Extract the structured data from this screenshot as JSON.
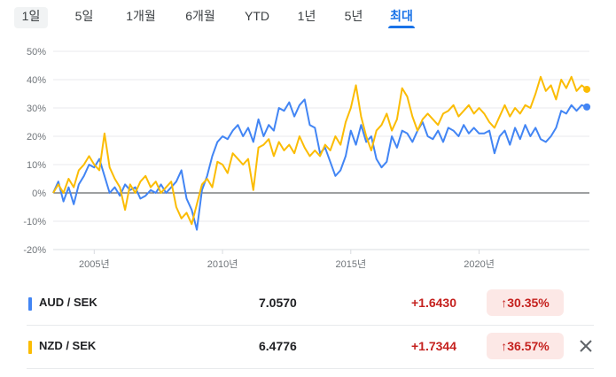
{
  "tabs": [
    {
      "label": "1일",
      "state": "selected"
    },
    {
      "label": "5일",
      "state": "normal"
    },
    {
      "label": "1개월",
      "state": "normal"
    },
    {
      "label": "6개월",
      "state": "normal"
    },
    {
      "label": "YTD",
      "state": "normal"
    },
    {
      "label": "1년",
      "state": "normal"
    },
    {
      "label": "5년",
      "state": "normal"
    },
    {
      "label": "최대",
      "state": "active"
    }
  ],
  "chart_data": {
    "type": "line",
    "ylim": [
      -20,
      50
    ],
    "yticks": [
      "50%",
      "40%",
      "30%",
      "20%",
      "10%",
      "0%",
      "-10%",
      "-20%"
    ],
    "xlim": [
      2003.4,
      2024.3
    ],
    "xticks": [
      {
        "label": "2005년",
        "year": 2005
      },
      {
        "label": "2010년",
        "year": 2010
      },
      {
        "label": "2015년",
        "year": 2015
      },
      {
        "label": "2020년",
        "year": 2020
      }
    ],
    "grid": true,
    "series": [
      {
        "name": "AUD / SEK",
        "color": "#4285f4",
        "x": [
          2003.4,
          2003.6,
          2003.8,
          2004.0,
          2004.2,
          2004.4,
          2004.6,
          2004.8,
          2005.0,
          2005.2,
          2005.4,
          2005.6,
          2005.8,
          2006.0,
          2006.2,
          2006.4,
          2006.6,
          2006.8,
          2007.0,
          2007.2,
          2007.4,
          2007.6,
          2007.8,
          2008.0,
          2008.2,
          2008.4,
          2008.6,
          2008.8,
          2009.0,
          2009.2,
          2009.4,
          2009.6,
          2009.8,
          2010.0,
          2010.2,
          2010.4,
          2010.6,
          2010.8,
          2011.0,
          2011.2,
          2011.4,
          2011.6,
          2011.8,
          2012.0,
          2012.2,
          2012.4,
          2012.6,
          2012.8,
          2013.0,
          2013.2,
          2013.4,
          2013.6,
          2013.8,
          2014.0,
          2014.2,
          2014.4,
          2014.6,
          2014.8,
          2015.0,
          2015.2,
          2015.4,
          2015.6,
          2015.8,
          2016.0,
          2016.2,
          2016.4,
          2016.6,
          2016.8,
          2017.0,
          2017.2,
          2017.4,
          2017.6,
          2017.8,
          2018.0,
          2018.2,
          2018.4,
          2018.6,
          2018.8,
          2019.0,
          2019.2,
          2019.4,
          2019.6,
          2019.8,
          2020.0,
          2020.2,
          2020.4,
          2020.6,
          2020.8,
          2021.0,
          2021.2,
          2021.4,
          2021.6,
          2021.8,
          2022.0,
          2022.2,
          2022.4,
          2022.6,
          2022.8,
          2023.0,
          2023.2,
          2023.4,
          2023.6,
          2023.8,
          2024.0,
          2024.2
        ],
        "y": [
          0,
          4,
          -3,
          2,
          -4,
          3,
          6,
          10,
          9,
          12,
          6,
          0,
          2,
          -1,
          3,
          1,
          2,
          -2,
          -1,
          1,
          0,
          3,
          0,
          2,
          4,
          8,
          -2,
          -6,
          -13,
          1,
          6,
          13,
          18,
          20,
          19,
          22,
          24,
          20,
          23,
          18,
          26,
          20,
          24,
          22,
          30,
          29,
          32,
          27,
          31,
          33,
          24,
          23,
          14,
          16,
          11,
          6,
          8,
          13,
          22,
          17,
          24,
          18,
          20,
          12,
          9,
          11,
          20,
          16,
          22,
          21,
          18,
          22,
          25,
          20,
          19,
          22,
          18,
          23,
          22,
          20,
          24,
          21,
          23,
          21,
          21,
          22,
          14,
          20,
          22,
          17,
          23,
          19,
          24,
          20,
          23,
          19,
          18,
          20,
          23,
          29,
          28,
          31,
          29,
          31,
          30.35
        ]
      },
      {
        "name": "NZD / SEK",
        "color": "#fbbc04",
        "x": [
          2003.4,
          2003.6,
          2003.8,
          2004.0,
          2004.2,
          2004.4,
          2004.6,
          2004.8,
          2005.0,
          2005.2,
          2005.4,
          2005.6,
          2005.8,
          2006.0,
          2006.2,
          2006.4,
          2006.6,
          2006.8,
          2007.0,
          2007.2,
          2007.4,
          2007.6,
          2007.8,
          2008.0,
          2008.2,
          2008.4,
          2008.6,
          2008.8,
          2009.0,
          2009.2,
          2009.4,
          2009.6,
          2009.8,
          2010.0,
          2010.2,
          2010.4,
          2010.6,
          2010.8,
          2011.0,
          2011.2,
          2011.4,
          2011.6,
          2011.8,
          2012.0,
          2012.2,
          2012.4,
          2012.6,
          2012.8,
          2013.0,
          2013.2,
          2013.4,
          2013.6,
          2013.8,
          2014.0,
          2014.2,
          2014.4,
          2014.6,
          2014.8,
          2015.0,
          2015.2,
          2015.4,
          2015.6,
          2015.8,
          2016.0,
          2016.2,
          2016.4,
          2016.6,
          2016.8,
          2017.0,
          2017.2,
          2017.4,
          2017.6,
          2017.8,
          2018.0,
          2018.2,
          2018.4,
          2018.6,
          2018.8,
          2019.0,
          2019.2,
          2019.4,
          2019.6,
          2019.8,
          2020.0,
          2020.2,
          2020.4,
          2020.6,
          2020.8,
          2021.0,
          2021.2,
          2021.4,
          2021.6,
          2021.8,
          2022.0,
          2022.2,
          2022.4,
          2022.6,
          2022.8,
          2023.0,
          2023.2,
          2023.4,
          2023.6,
          2023.8,
          2024.0,
          2024.2
        ],
        "y": [
          0,
          3,
          0,
          5,
          2,
          8,
          10,
          13,
          10,
          8,
          21,
          9,
          5,
          2,
          -6,
          3,
          0,
          4,
          6,
          2,
          4,
          0,
          2,
          4,
          -5,
          -9,
          -7,
          -11,
          -4,
          3,
          5,
          2,
          11,
          10,
          7,
          14,
          12,
          10,
          12,
          1,
          16,
          17,
          19,
          13,
          18,
          15,
          17,
          14,
          20,
          16,
          13,
          15,
          13,
          17,
          15,
          20,
          17,
          25,
          30,
          38,
          27,
          20,
          15,
          22,
          24,
          28,
          22,
          26,
          37,
          34,
          27,
          22,
          26,
          28,
          26,
          24,
          28,
          29,
          31,
          27,
          29,
          31,
          28,
          30,
          28,
          25,
          23,
          27,
          31,
          27,
          30,
          28,
          31,
          30,
          35,
          41,
          36,
          38,
          33,
          40,
          37,
          41,
          36,
          38,
          36.57
        ]
      }
    ]
  },
  "quotes": [
    {
      "pair": "AUD / SEK",
      "color": "#4285f4",
      "price": "7.0570",
      "change": "+1.6430",
      "change_pct": "30.35%",
      "direction": "up"
    },
    {
      "pair": "NZD / SEK",
      "color": "#fbbc04",
      "price": "6.4776",
      "change": "+1.7344",
      "change_pct": "36.57%",
      "direction": "up",
      "removable": true
    }
  ],
  "icons": {
    "up_arrow": "↑",
    "close": "close-icon"
  }
}
